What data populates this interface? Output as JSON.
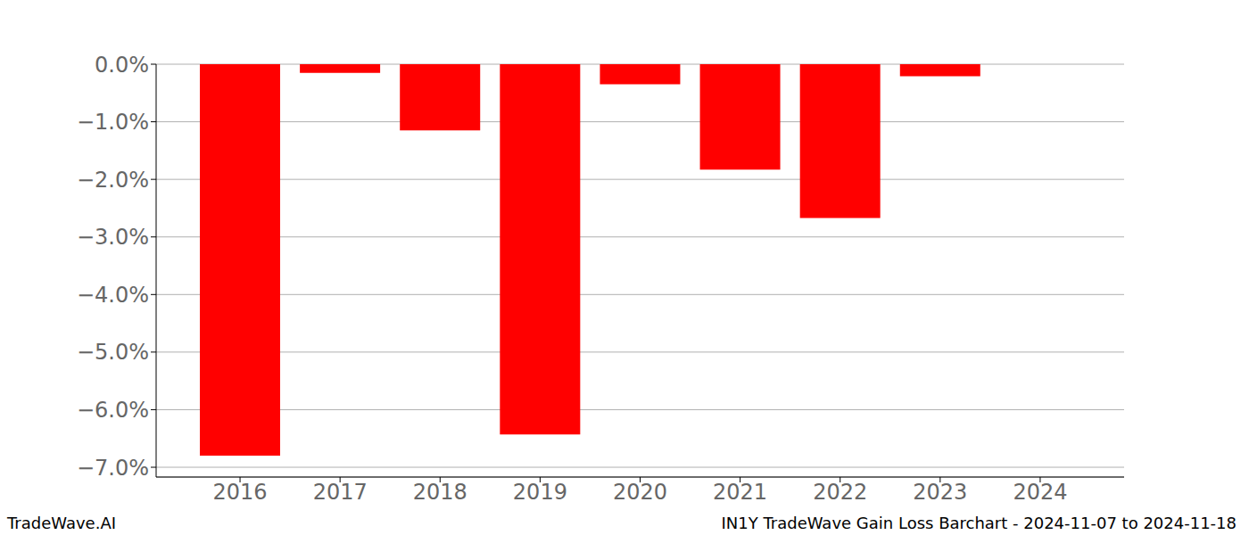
{
  "chart_data": {
    "type": "bar",
    "title": "IN1Y TradeWave Gain Loss Barchart - 2024-11-07 to 2024-11-18",
    "annotation": "TradeWave.AI",
    "categories": [
      "2016",
      "2017",
      "2018",
      "2019",
      "2020",
      "2021",
      "2022",
      "2023",
      "2024"
    ],
    "values": [
      -6.8,
      -0.15,
      -1.15,
      -6.43,
      -0.35,
      -1.83,
      -2.67,
      -0.21,
      null
    ],
    "color": "#ff0000",
    "ylim": [
      -7.17,
      0
    ],
    "yticks": [
      {
        "value": 0,
        "label": "0.0%"
      },
      {
        "value": -1,
        "label": "−1.0%"
      },
      {
        "value": -2,
        "label": "−2.0%"
      },
      {
        "value": -3,
        "label": "−3.0%"
      },
      {
        "value": -4,
        "label": "−4.0%"
      },
      {
        "value": -5,
        "label": "−5.0%"
      },
      {
        "value": -6,
        "label": "−6.0%"
      },
      {
        "value": -7,
        "label": "−7.0%"
      }
    ],
    "grid": true
  }
}
